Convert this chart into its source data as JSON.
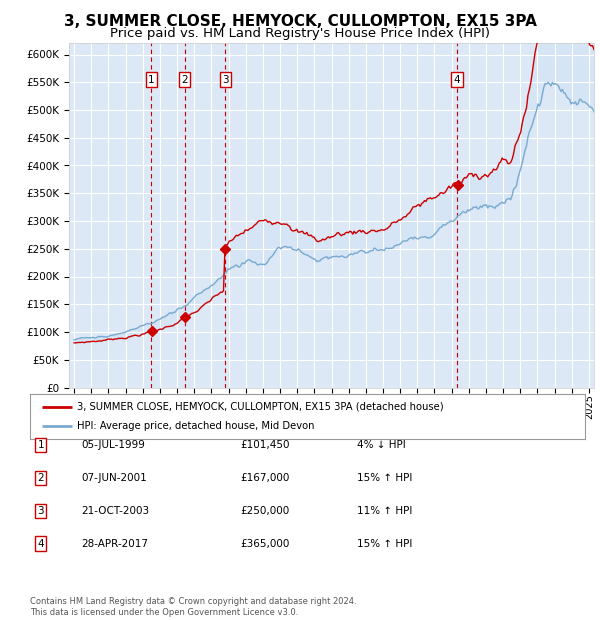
{
  "title": "3, SUMMER CLOSE, HEMYOCK, CULLOMPTON, EX15 3PA",
  "subtitle": "Price paid vs. HM Land Registry's House Price Index (HPI)",
  "title_fontsize": 11,
  "subtitle_fontsize": 9.5,
  "background_color": "#ffffff",
  "plot_bg_color": "#dce8f5",
  "grid_color": "#ffffff",
  "ylabel_ticks": [
    "£0",
    "£50K",
    "£100K",
    "£150K",
    "£200K",
    "£250K",
    "£300K",
    "£350K",
    "£400K",
    "£450K",
    "£500K",
    "£550K",
    "£600K"
  ],
  "ytick_values": [
    0,
    50000,
    100000,
    150000,
    200000,
    250000,
    300000,
    350000,
    400000,
    450000,
    500000,
    550000,
    600000
  ],
  "xlim_start": 1994.7,
  "xlim_end": 2025.3,
  "ylim_min": 0,
  "ylim_max": 620000,
  "sale_line_color": "#cc0000",
  "hpi_line_color": "#aac4e0",
  "hpi_line_color2": "#7aaad0",
  "fill_color": "#d0e4f5",
  "sale_label": "3, SUMMER CLOSE, HEMYOCK, CULLOMPTON, EX15 3PA (detached house)",
  "hpi_label": "HPI: Average price, detached house, Mid Devon",
  "transactions": [
    {
      "num": 1,
      "date": "05-JUL-1999",
      "price": 101450,
      "pct": "4%",
      "dir": "↓",
      "year": 1999.5
    },
    {
      "num": 2,
      "date": "07-JUN-2001",
      "price": 167000,
      "pct": "15%",
      "dir": "↑",
      "year": 2001.45
    },
    {
      "num": 3,
      "date": "21-OCT-2003",
      "price": 250000,
      "pct": "11%",
      "dir": "↑",
      "year": 2003.8
    },
    {
      "num": 4,
      "date": "28-APR-2017",
      "price": 365000,
      "pct": "15%",
      "dir": "↑",
      "year": 2017.32
    }
  ],
  "footer": "Contains HM Land Registry data © Crown copyright and database right 2024.\nThis data is licensed under the Open Government Licence v3.0.",
  "x_tick_years": [
    1995,
    1996,
    1997,
    1998,
    1999,
    2000,
    2001,
    2002,
    2003,
    2004,
    2005,
    2006,
    2007,
    2008,
    2009,
    2010,
    2011,
    2012,
    2013,
    2014,
    2015,
    2016,
    2017,
    2018,
    2019,
    2020,
    2021,
    2022,
    2023,
    2024,
    2025
  ]
}
